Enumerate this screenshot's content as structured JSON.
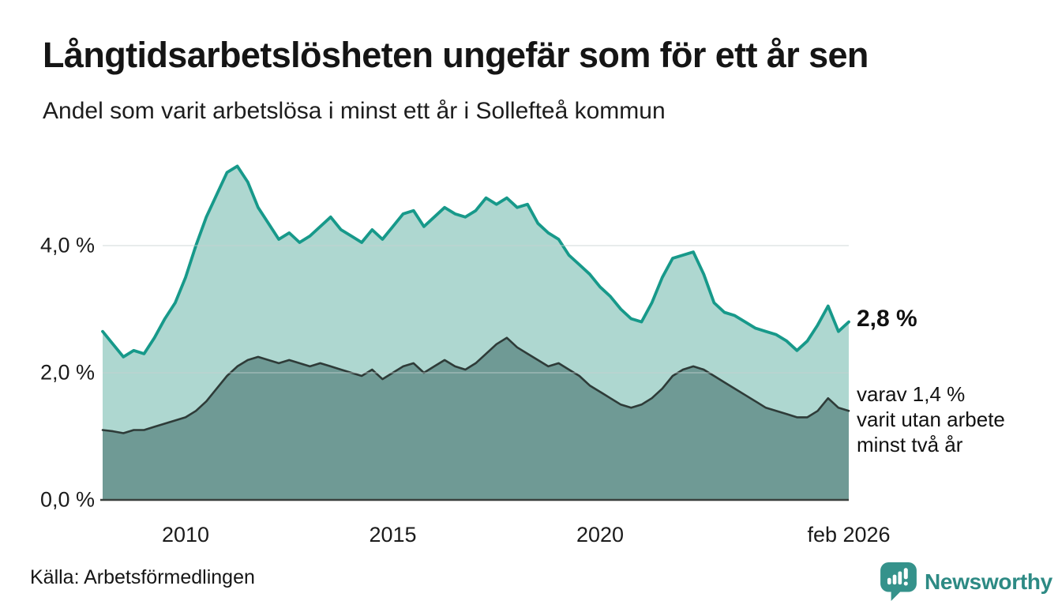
{
  "header": {
    "title": "Långtidsarbetslösheten ungefär som för ett år sen",
    "subtitle": "Andel som varit arbetslösa i minst ett år i Sollefteå kommun"
  },
  "annotations": {
    "latest_value": "2,8 %",
    "secondary_note": "varav 1,4 %\nvarit utan arbete\nminst två år"
  },
  "footer": {
    "source": "Källa: Arbetsförmedlingen",
    "brand_name": "Newsworthy",
    "brand_icon": "newsworthy-speech-bubble-bar-chart-icon"
  },
  "colors": {
    "brand_teal": "#2d8a84",
    "logo_badge": "#35928b",
    "top_line": "#17998a",
    "top_fill": "#aed7d0",
    "lower_line": "#2e3b38",
    "lower_fill": "#6f9a95",
    "gridline": "#c7cfd0",
    "axis": "#3a403d",
    "text": "#141414"
  },
  "chart_data": {
    "type": "area",
    "title": "Långtidsarbetslösheten ungefär som för ett år sen",
    "subtitle": "Andel som varit arbetslösa i minst ett år i Sollefteå kommun",
    "xlabel": "",
    "ylabel": "",
    "xlim": [
      2008,
      2026.08
    ],
    "ylim": [
      0,
      5.5
    ],
    "grid": "horizontal",
    "legend": "none",
    "unit": "%",
    "x": [
      2008,
      2008.25,
      2008.5,
      2008.75,
      2009,
      2009.25,
      2009.5,
      2009.75,
      2010,
      2010.25,
      2010.5,
      2010.75,
      2011,
      2011.25,
      2011.5,
      2011.75,
      2012,
      2012.25,
      2012.5,
      2012.75,
      2013,
      2013.25,
      2013.5,
      2013.75,
      2014,
      2014.25,
      2014.5,
      2014.75,
      2015,
      2015.25,
      2015.5,
      2015.75,
      2016,
      2016.25,
      2016.5,
      2016.75,
      2017,
      2017.25,
      2017.5,
      2017.75,
      2018,
      2018.25,
      2018.5,
      2018.75,
      2019,
      2019.25,
      2019.5,
      2019.75,
      2020,
      2020.25,
      2020.5,
      2020.75,
      2021,
      2021.25,
      2021.5,
      2021.75,
      2022,
      2022.25,
      2022.5,
      2022.75,
      2023,
      2023.25,
      2023.5,
      2023.75,
      2024,
      2024.25,
      2024.5,
      2024.75,
      2025,
      2025.25,
      2025.5,
      2025.75,
      2026
    ],
    "series": [
      {
        "name": "Andel arbetslösa minst ett år",
        "stroke": "#17998a",
        "fill": "#aed7d0",
        "stroke_width": 3.8,
        "latest_label": "2,8 %",
        "values": [
          2.65,
          2.45,
          2.25,
          2.35,
          2.3,
          2.55,
          2.85,
          3.1,
          3.5,
          4.0,
          4.45,
          4.8,
          5.15,
          5.25,
          5.0,
          4.6,
          4.35,
          4.1,
          4.2,
          4.05,
          4.15,
          4.3,
          4.45,
          4.25,
          4.15,
          4.05,
          4.25,
          4.1,
          4.3,
          4.5,
          4.55,
          4.3,
          4.45,
          4.6,
          4.5,
          4.45,
          4.55,
          4.75,
          4.65,
          4.75,
          4.6,
          4.65,
          4.35,
          4.2,
          4.1,
          3.85,
          3.7,
          3.55,
          3.35,
          3.2,
          3.0,
          2.85,
          2.8,
          3.1,
          3.5,
          3.8,
          3.85,
          3.9,
          3.55,
          3.1,
          2.95,
          2.9,
          2.8,
          2.7,
          2.65,
          2.6,
          2.5,
          2.35,
          2.5,
          2.75,
          3.05,
          2.65,
          2.8
        ]
      },
      {
        "name": "varav utan arbete minst två år",
        "stroke": "#2e3b38",
        "fill": "#6f9a95",
        "stroke_width": 2.6,
        "latest_label": "1,4 %",
        "values": [
          1.1,
          1.08,
          1.05,
          1.1,
          1.1,
          1.15,
          1.2,
          1.25,
          1.3,
          1.4,
          1.55,
          1.75,
          1.95,
          2.1,
          2.2,
          2.25,
          2.2,
          2.15,
          2.2,
          2.15,
          2.1,
          2.15,
          2.1,
          2.05,
          2.0,
          1.95,
          2.05,
          1.9,
          2.0,
          2.1,
          2.15,
          2.0,
          2.1,
          2.2,
          2.1,
          2.05,
          2.15,
          2.3,
          2.45,
          2.55,
          2.4,
          2.3,
          2.2,
          2.1,
          2.15,
          2.05,
          1.95,
          1.8,
          1.7,
          1.6,
          1.5,
          1.45,
          1.5,
          1.6,
          1.75,
          1.95,
          2.05,
          2.1,
          2.05,
          1.95,
          1.85,
          1.75,
          1.65,
          1.55,
          1.45,
          1.4,
          1.35,
          1.3,
          1.3,
          1.4,
          1.6,
          1.45,
          1.4
        ]
      }
    ],
    "y_ticks": [
      {
        "value": 0,
        "label": "0,0 %"
      },
      {
        "value": 2,
        "label": "2,0 %"
      },
      {
        "value": 4,
        "label": "4,0 %"
      }
    ],
    "x_ticks": [
      {
        "value": 2010,
        "label": "2010"
      },
      {
        "value": 2015,
        "label": "2015"
      },
      {
        "value": 2020,
        "label": "2020"
      },
      {
        "value": 2026,
        "label": "feb 2026"
      }
    ]
  }
}
